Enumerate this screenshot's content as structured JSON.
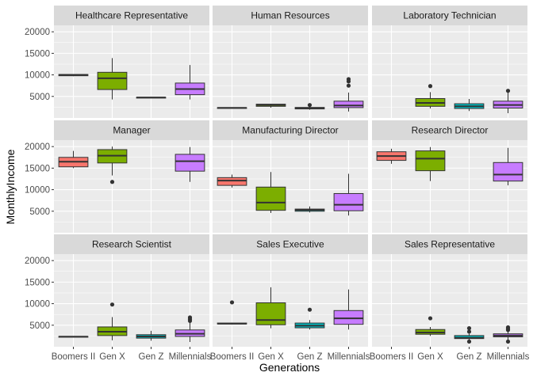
{
  "chart_data": {
    "type": "boxplot",
    "facets": [
      "Healthcare Representative",
      "Human Resources",
      "Laboratory Technician",
      "Manager",
      "Manufacturing Director",
      "Research Director",
      "Research Scientist",
      "Sales Executive",
      "Sales Representative"
    ],
    "categories": [
      "Boomers II",
      "Gen X",
      "Gen Z",
      "Millennials"
    ],
    "x_tick_labels": [
      "Boomers II",
      "Gen X",
      "Gen Z",
      "Millennials"
    ],
    "xlabel": "Generations",
    "ylabel": "MonthlyIncome",
    "ylim": [
      0,
      21500
    ],
    "yticks": [
      5000,
      10000,
      15000,
      20000
    ],
    "grid": true,
    "colors": {
      "Boomers II": "#F8766D",
      "Gen X": "#7CAE00",
      "Gen Z": "#00BFC4",
      "Millennials": "#C77CFF",
      "panel_background": "#EBEBEB",
      "strip_background": "#D9D9D9",
      "grid": "#FFFFFF"
    },
    "boxes": {
      "Healthcare Representative": [
        {
          "group": "Boomers II",
          "min": 9700,
          "q1": 9800,
          "median": 10000,
          "q3": 10100,
          "max": 10200,
          "outliers": []
        },
        {
          "group": "Gen X",
          "min": 4300,
          "q1": 6600,
          "median": 9200,
          "q3": 10600,
          "max": 13900,
          "outliers": []
        },
        {
          "group": "Gen Z",
          "min": 4700,
          "q1": 4700,
          "median": 4750,
          "q3": 4800,
          "max": 4800,
          "outliers": []
        },
        {
          "group": "Millennials",
          "min": 4300,
          "q1": 5400,
          "median": 6700,
          "q3": 8100,
          "max": 12300,
          "outliers": []
        }
      ],
      "Human Resources": [
        {
          "group": "Boomers II",
          "min": 2300,
          "q1": 2300,
          "median": 2350,
          "q3": 2400,
          "max": 2400,
          "outliers": []
        },
        {
          "group": "Gen X",
          "min": 2400,
          "q1": 2700,
          "median": 3000,
          "q3": 3200,
          "max": 3300,
          "outliers": []
        },
        {
          "group": "Gen Z",
          "min": 1900,
          "q1": 2100,
          "median": 2300,
          "q3": 2450,
          "max": 2600,
          "outliers": [
            3000
          ]
        },
        {
          "group": "Millennials",
          "min": 1500,
          "q1": 2400,
          "median": 2900,
          "q3": 3900,
          "max": 5900,
          "outliers": [
            7500,
            8500,
            9000
          ]
        }
      ],
      "Laboratory Technician": [
        {
          "group": "Gen X",
          "min": 2200,
          "q1": 2700,
          "median": 3500,
          "q3": 4500,
          "max": 6000,
          "outliers": [
            7400
          ]
        },
        {
          "group": "Gen Z",
          "min": 1600,
          "q1": 2200,
          "median": 2700,
          "q3": 3300,
          "max": 4400,
          "outliers": []
        },
        {
          "group": "Millennials",
          "min": 1100,
          "q1": 2300,
          "median": 3000,
          "q3": 3900,
          "max": 5900,
          "outliers": [
            6300
          ]
        }
      ],
      "Manager": [
        {
          "group": "Boomers II",
          "min": 15000,
          "q1": 15300,
          "median": 16500,
          "q3": 17500,
          "max": 19000,
          "outliers": []
        },
        {
          "group": "Gen X",
          "min": 13300,
          "q1": 16200,
          "median": 17900,
          "q3": 19300,
          "max": 20000,
          "outliers": [
            11800
          ]
        },
        {
          "group": "Millennials",
          "min": 11800,
          "q1": 14300,
          "median": 16600,
          "q3": 18200,
          "max": 19900,
          "outliers": []
        }
      ],
      "Manufacturing Director": [
        {
          "group": "Boomers II",
          "min": 10500,
          "q1": 11000,
          "median": 12100,
          "q3": 12800,
          "max": 13500,
          "outliers": []
        },
        {
          "group": "Gen X",
          "min": 4600,
          "q1": 5200,
          "median": 7000,
          "q3": 10600,
          "max": 14100,
          "outliers": []
        },
        {
          "group": "Gen Z",
          "min": 4700,
          "q1": 5000,
          "median": 5300,
          "q3": 5500,
          "max": 6100,
          "outliers": []
        },
        {
          "group": "Millennials",
          "min": 4000,
          "q1": 5100,
          "median": 6500,
          "q3": 9100,
          "max": 13700,
          "outliers": []
        }
      ],
      "Research Director": [
        {
          "group": "Boomers II",
          "min": 16000,
          "q1": 16800,
          "median": 17800,
          "q3": 18800,
          "max": 19500,
          "outliers": []
        },
        {
          "group": "Gen X",
          "min": 12000,
          "q1": 14400,
          "median": 17200,
          "q3": 19000,
          "max": 19900,
          "outliers": []
        },
        {
          "group": "Millennials",
          "min": 11000,
          "q1": 12000,
          "median": 13500,
          "q3": 16300,
          "max": 19700,
          "outliers": []
        }
      ],
      "Research Scientist": [
        {
          "group": "Boomers II",
          "min": 2300,
          "q1": 2300,
          "median": 2350,
          "q3": 2400,
          "max": 2400,
          "outliers": []
        },
        {
          "group": "Gen X",
          "min": 1500,
          "q1": 2600,
          "median": 3500,
          "q3": 4600,
          "max": 6900,
          "outliers": [
            9800
          ]
        },
        {
          "group": "Gen Z",
          "min": 1400,
          "q1": 2000,
          "median": 2400,
          "q3": 2800,
          "max": 3700,
          "outliers": []
        },
        {
          "group": "Millennials",
          "min": 1100,
          "q1": 2400,
          "median": 3000,
          "q3": 3900,
          "max": 5600,
          "outliers": [
            6000,
            6400,
            6800
          ]
        }
      ],
      "Sales Executive": [
        {
          "group": "Boomers II",
          "min": 5200,
          "q1": 5300,
          "median": 5350,
          "q3": 5500,
          "max": 5600,
          "outliers": [
            10300
          ]
        },
        {
          "group": "Gen X",
          "min": 4300,
          "q1": 5100,
          "median": 6200,
          "q3": 10200,
          "max": 13800,
          "outliers": []
        },
        {
          "group": "Gen Z",
          "min": 4000,
          "q1": 4400,
          "median": 4900,
          "q3": 5500,
          "max": 6200,
          "outliers": [
            8600
          ]
        },
        {
          "group": "Millennials",
          "min": 4000,
          "q1": 5200,
          "median": 6600,
          "q3": 8400,
          "max": 13300,
          "outliers": []
        }
      ],
      "Sales Representative": [
        {
          "group": "Gen X",
          "min": 2500,
          "q1": 2900,
          "median": 3300,
          "q3": 4000,
          "max": 4600,
          "outliers": [
            6600
          ]
        },
        {
          "group": "Gen Z",
          "min": 1600,
          "q1": 1900,
          "median": 2100,
          "q3": 2600,
          "max": 3000,
          "outliers": [
            1200,
            3500,
            4300
          ]
        },
        {
          "group": "Millennials",
          "min": 1600,
          "q1": 2300,
          "median": 2600,
          "q3": 3000,
          "max": 3600,
          "outliers": [
            1200,
            3900,
            4200,
            4500
          ]
        }
      ]
    }
  }
}
